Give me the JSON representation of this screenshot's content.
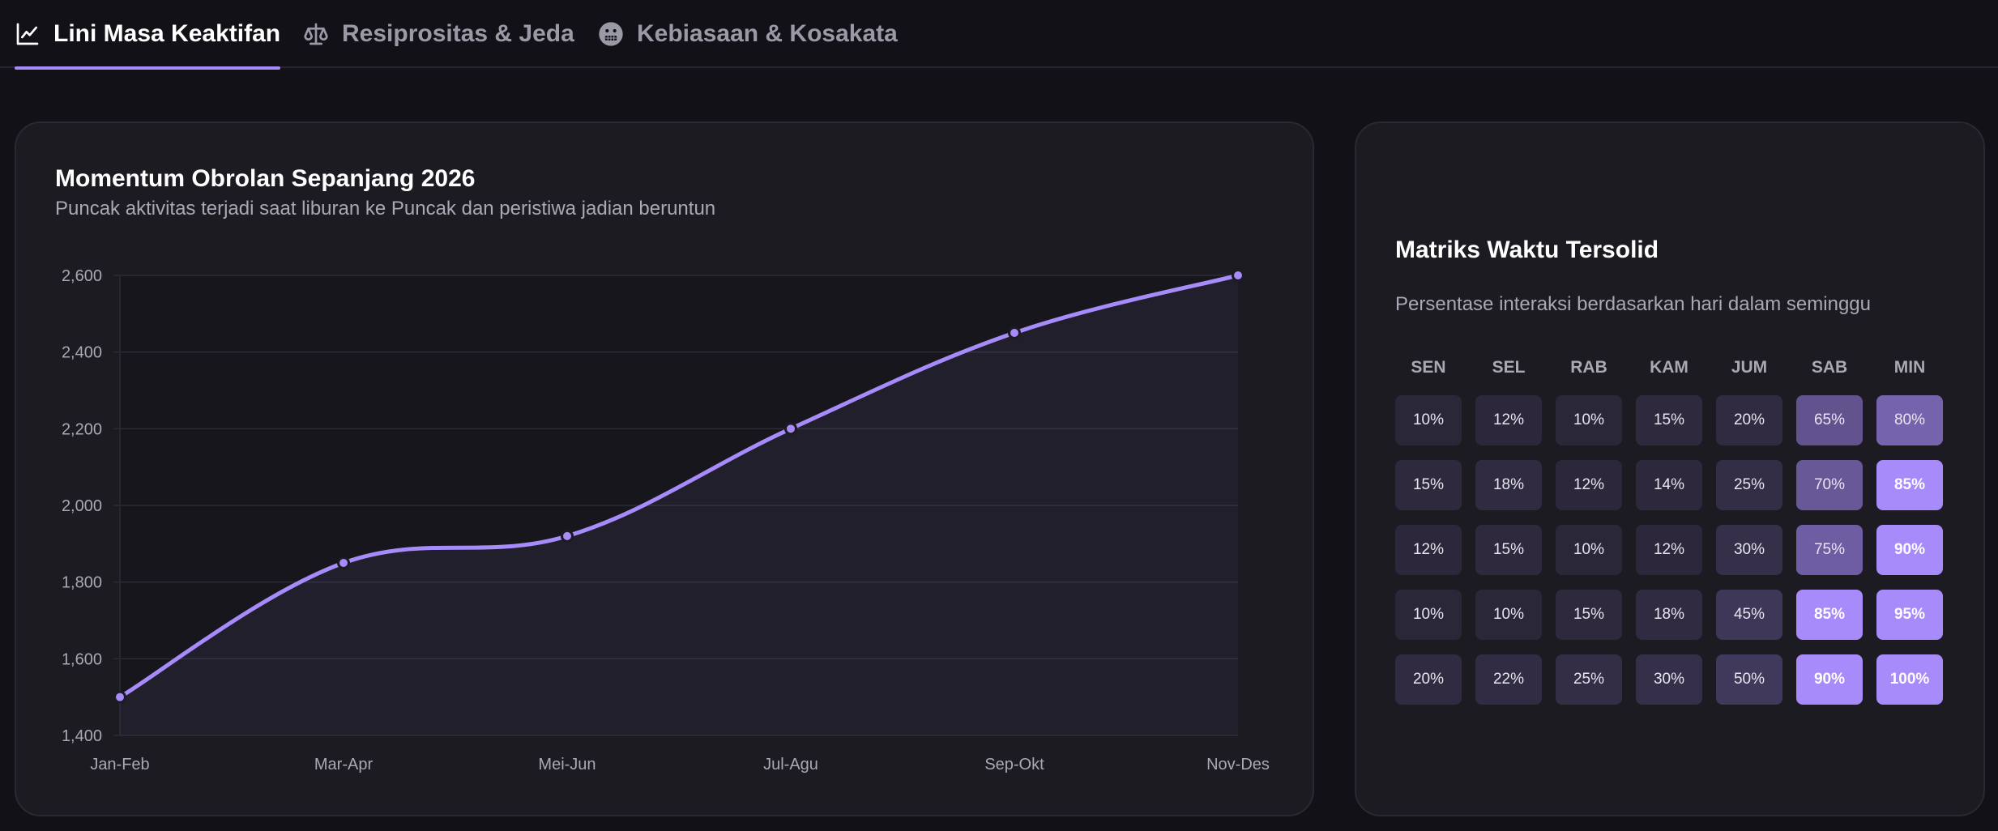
{
  "tabs": [
    {
      "label": "Lini Masa Keaktifan",
      "icon": "line-chart-icon",
      "active": true
    },
    {
      "label": "Resiprositas & Jeda",
      "icon": "scale-icon",
      "active": false
    },
    {
      "label": "Kebiasaan & Kosakata",
      "icon": "grimace-face-icon",
      "active": false
    }
  ],
  "timeline": {
    "title": "Momentum Obrolan Sepanjang 2026",
    "subtitle": "Puncak aktivitas terjadi saat liburan ke Puncak dan peristiwa jadian beruntun"
  },
  "chart_data": {
    "type": "line",
    "categories": [
      "Jan-Feb",
      "Mar-Apr",
      "Mei-Jun",
      "Jul-Agu",
      "Sep-Okt",
      "Nov-Des"
    ],
    "values": [
      1500,
      1850,
      1920,
      2200,
      2450,
      2600
    ],
    "ylim": [
      1400,
      2600
    ],
    "yticks": [
      1400,
      1600,
      1800,
      2000,
      2200,
      2400,
      2600
    ],
    "ytick_labels": [
      "1,400",
      "1,600",
      "1,800",
      "2,000",
      "2,200",
      "2,400",
      "2,600"
    ],
    "grid": true,
    "filled": true,
    "line_color": "#a78bfa"
  },
  "matrix": {
    "title": "Matriks Waktu Tersolid",
    "subtitle": "Persentase interaksi berdasarkan hari dalam seminggu",
    "days": [
      "SEN",
      "SEL",
      "RAB",
      "KAM",
      "JUM",
      "SAB",
      "MIN"
    ],
    "rows": [
      [
        10,
        12,
        10,
        15,
        20,
        65,
        80
      ],
      [
        15,
        18,
        12,
        14,
        25,
        70,
        85
      ],
      [
        12,
        15,
        10,
        12,
        30,
        75,
        90
      ],
      [
        10,
        10,
        15,
        18,
        45,
        85,
        95
      ],
      [
        20,
        22,
        25,
        30,
        50,
        90,
        100
      ]
    ],
    "accent_color": "#a78bfa"
  }
}
